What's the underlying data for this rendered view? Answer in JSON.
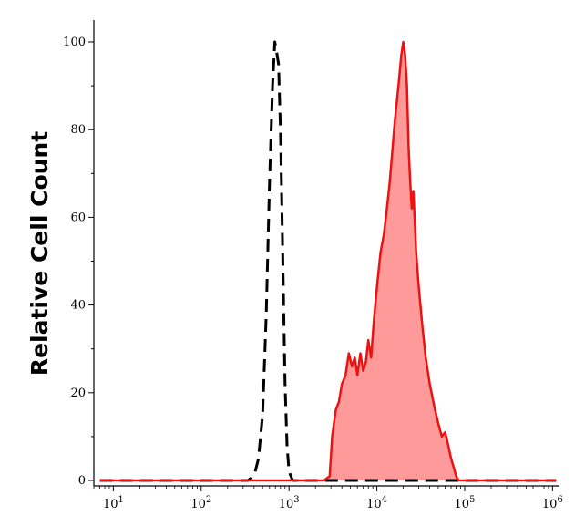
{
  "chart_data": {
    "type": "area",
    "title": "",
    "xlabel": "",
    "ylabel": "Relative Cell Count",
    "x_scale": "log",
    "xlim": [
      6,
      1200000
    ],
    "ylim": [
      0,
      100
    ],
    "grid": false,
    "x_ticks": [
      {
        "value": 10,
        "base": "10",
        "exp": "1"
      },
      {
        "value": 100,
        "base": "10",
        "exp": "2"
      },
      {
        "value": 1000,
        "base": "10",
        "exp": "3"
      },
      {
        "value": 10000,
        "base": "10",
        "exp": "4"
      },
      {
        "value": 100000,
        "base": "10",
        "exp": "5"
      },
      {
        "value": 1000000,
        "base": "10",
        "exp": "6"
      }
    ],
    "y_ticks": [
      0,
      20,
      40,
      60,
      80,
      100
    ],
    "series": [
      {
        "style": "dashed",
        "color": "#000000",
        "fill": "none",
        "points": [
          [
            7,
            0
          ],
          [
            250,
            0
          ],
          [
            340,
            0
          ],
          [
            400,
            1
          ],
          [
            450,
            5
          ],
          [
            500,
            15
          ],
          [
            550,
            38
          ],
          [
            600,
            68
          ],
          [
            650,
            90
          ],
          [
            690,
            100
          ],
          [
            720,
            98
          ],
          [
            760,
            95
          ],
          [
            800,
            80
          ],
          [
            850,
            50
          ],
          [
            900,
            22
          ],
          [
            950,
            8
          ],
          [
            1000,
            2
          ],
          [
            1100,
            0
          ],
          [
            1100000,
            0
          ]
        ]
      },
      {
        "style": "solid",
        "color": "#ee1111",
        "fill": "#ff9a9a",
        "points": [
          [
            7,
            0
          ],
          [
            2500,
            0
          ],
          [
            2900,
            1
          ],
          [
            3100,
            10
          ],
          [
            3400,
            16
          ],
          [
            3700,
            18
          ],
          [
            4000,
            22
          ],
          [
            4400,
            24
          ],
          [
            4800,
            29
          ],
          [
            5200,
            26
          ],
          [
            5600,
            28
          ],
          [
            6000,
            24
          ],
          [
            6500,
            29
          ],
          [
            7000,
            25
          ],
          [
            7500,
            27
          ],
          [
            8000,
            32
          ],
          [
            8600,
            28
          ],
          [
            9200,
            36
          ],
          [
            10000,
            44
          ],
          [
            11000,
            52
          ],
          [
            12000,
            56
          ],
          [
            13000,
            62
          ],
          [
            14000,
            68
          ],
          [
            15000,
            75
          ],
          [
            16000,
            82
          ],
          [
            17000,
            87
          ],
          [
            18000,
            92
          ],
          [
            19000,
            97
          ],
          [
            20000,
            100
          ],
          [
            21000,
            97
          ],
          [
            22000,
            90
          ],
          [
            23000,
            76
          ],
          [
            24000,
            68
          ],
          [
            25000,
            62
          ],
          [
            26000,
            66
          ],
          [
            27000,
            59
          ],
          [
            28000,
            52
          ],
          [
            30000,
            44
          ],
          [
            33000,
            35
          ],
          [
            36000,
            28
          ],
          [
            40000,
            22
          ],
          [
            45000,
            17
          ],
          [
            50000,
            13
          ],
          [
            55000,
            10
          ],
          [
            60000,
            11
          ],
          [
            65000,
            8
          ],
          [
            70000,
            5
          ],
          [
            75000,
            3
          ],
          [
            80000,
            1
          ],
          [
            85000,
            0
          ],
          [
            1100000,
            0
          ]
        ]
      }
    ]
  }
}
